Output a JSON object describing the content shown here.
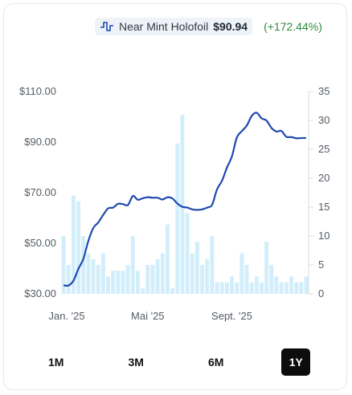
{
  "legend": {
    "variant": "Near Mint Holofoil",
    "price": "$90.94",
    "change": "(+172.44%)",
    "icon": "price-step-icon"
  },
  "ranges": [
    "1M",
    "3M",
    "6M",
    "1Y"
  ],
  "active_range": "1Y",
  "colors": {
    "line": "#1f49b0",
    "bar": "#d3eefb",
    "change": "#2e8b3d",
    "active_btn": "#0d0d0d"
  },
  "chart_data": {
    "type": "line+bar",
    "x_ticks": [
      "Jan. '25",
      "Mai '25",
      "Sept. '25"
    ],
    "y_left_ticks": [
      "$110.00",
      "$90.00",
      "$70.00",
      "$50.00",
      "$30.00"
    ],
    "y_right_ticks": [
      "35",
      "30",
      "25",
      "20",
      "15",
      "10",
      "5",
      "0"
    ],
    "y_left_range": [
      30,
      110
    ],
    "y_right_range": [
      0,
      35
    ],
    "grid": "horizontal-right",
    "price_series": {
      "name": "Near Mint Holofoil",
      "values": [
        33.4,
        33.3,
        35.2,
        39.9,
        43.8,
        50.9,
        56.0,
        58.2,
        61.2,
        63.8,
        64.1,
        65.6,
        65.5,
        65.1,
        68.7,
        67.2,
        67.8,
        68.2,
        68.0,
        68.0,
        67.3,
        68.2,
        67.7,
        65.7,
        64.4,
        64.1,
        63.4,
        63.2,
        63.4,
        64.1,
        65.2,
        71.3,
        74.7,
        79.9,
        84.3,
        91.8,
        94.3,
        96.5,
        100.3,
        101.6,
        99.4,
        98.5,
        95.6,
        94.2,
        94.4,
        92.1,
        92.0,
        91.5,
        91.6,
        91.6
      ]
    },
    "volume_series": {
      "name": "Volume",
      "values": [
        10,
        5,
        17,
        16,
        10,
        7,
        6,
        5,
        7,
        3,
        4,
        4,
        4,
        5,
        10,
        4,
        1,
        5,
        5,
        6,
        7,
        12,
        1,
        26,
        31,
        14,
        7,
        9,
        5,
        6,
        10,
        2,
        2,
        2,
        3,
        2,
        7,
        5,
        2,
        3,
        2,
        9,
        5,
        3,
        2,
        2,
        3,
        2,
        2,
        3
      ]
    }
  }
}
